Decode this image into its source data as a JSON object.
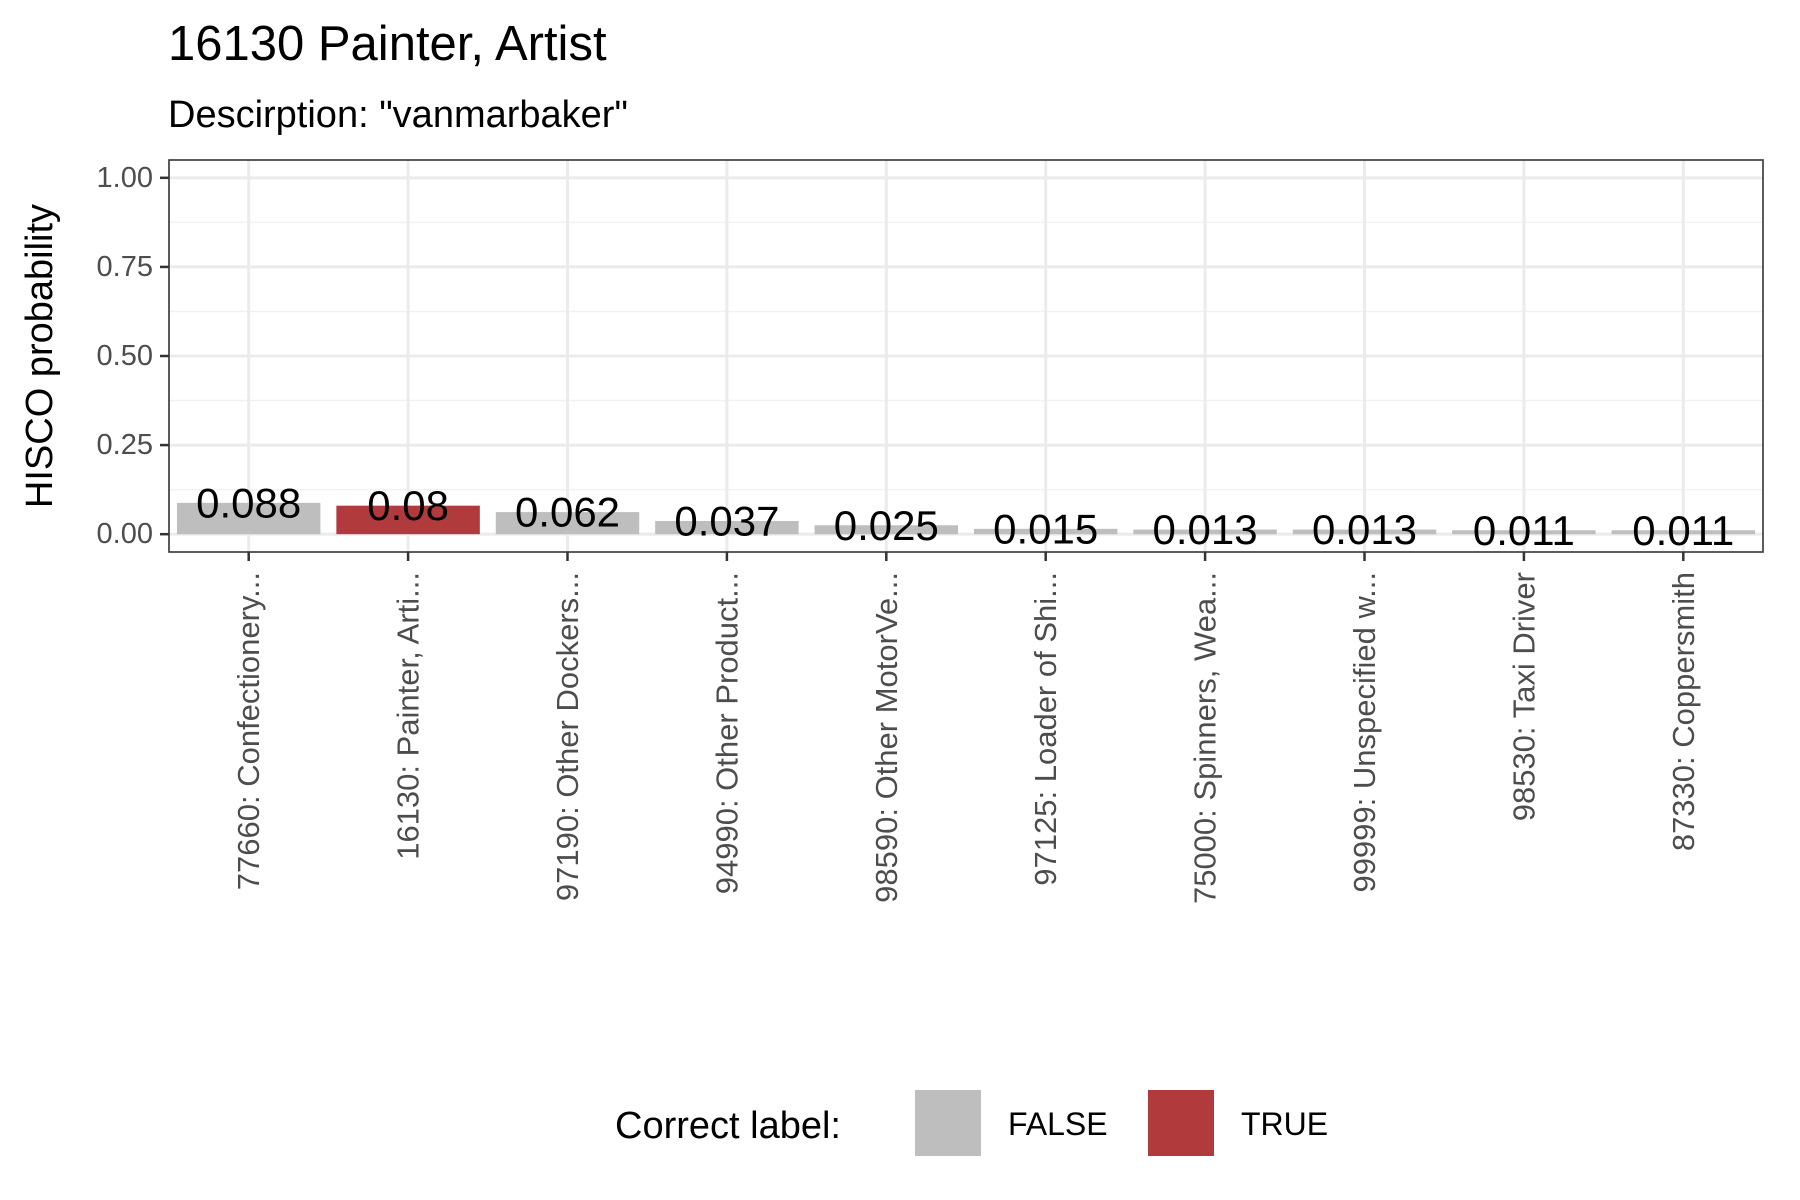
{
  "chart_data": {
    "type": "bar",
    "title": "16130 Painter, Artist",
    "subtitle": "Descirption: \"vanmarbaker\"",
    "xlabel": "",
    "ylabel": "HISCO probability",
    "ylim": [
      0,
      1.05
    ],
    "yticks": [
      "0.00",
      "0.25",
      "0.50",
      "0.75",
      "1.00"
    ],
    "ytick_values": [
      0,
      0.25,
      0.5,
      0.75,
      1.0
    ],
    "grid": true,
    "categories": [
      "77660: Confectionery...",
      "16130: Painter, Arti...",
      "97190: Other Dockers...",
      "94990: Other Product...",
      "98590: Other MotorVe...",
      "97125: Loader of Shi...",
      "75000: Spinners, Wea...",
      "99999: Unspecified w...",
      "98530: Taxi Driver",
      "87330: Coppersmith"
    ],
    "values": [
      0.088,
      0.08,
      0.062,
      0.037,
      0.025,
      0.015,
      0.013,
      0.013,
      0.011,
      0.011
    ],
    "data_labels": [
      "0.088",
      "0.08",
      "0.062",
      "0.037",
      "0.025",
      "0.015",
      "0.013",
      "0.013",
      "0.011",
      "0.011"
    ],
    "correct": [
      false,
      true,
      false,
      false,
      false,
      false,
      false,
      false,
      false,
      false
    ],
    "legend": {
      "title": "Correct label:",
      "placement": "bottom",
      "items": [
        {
          "label": "FALSE",
          "color": "#bebebe"
        },
        {
          "label": "TRUE",
          "color": "#b13a3c"
        }
      ]
    }
  }
}
